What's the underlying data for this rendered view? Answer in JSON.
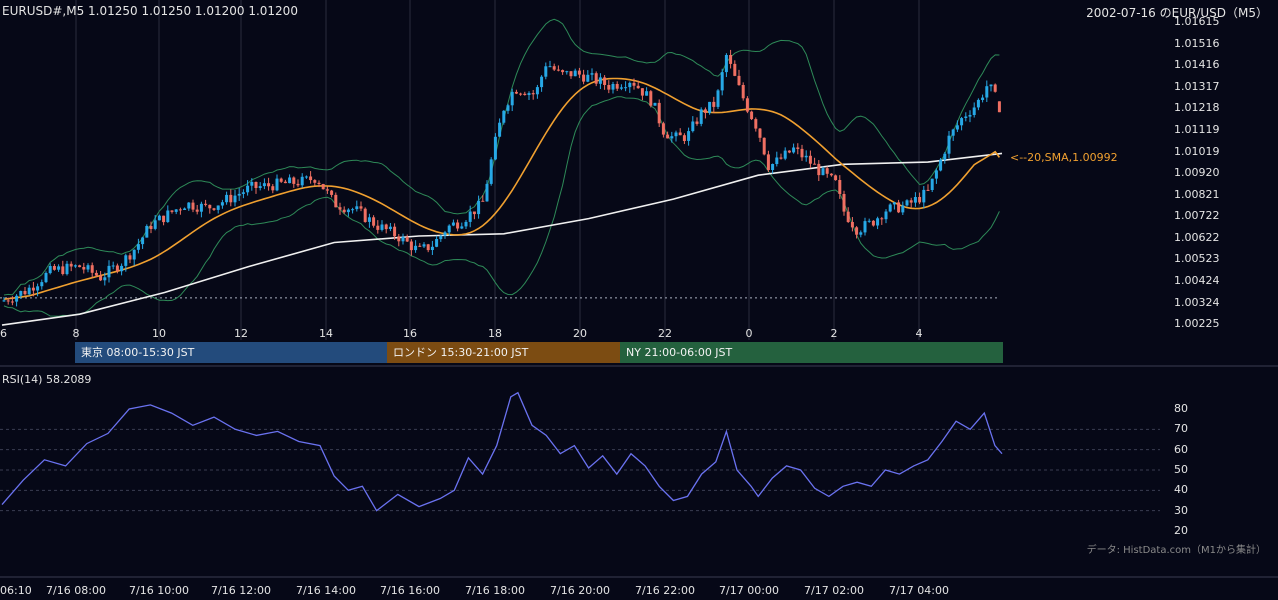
{
  "header": {
    "ohlc_label": "EURUSD#,M5 1.01250 1.01250 1.01200 1.01200",
    "title_right": "2002-07-16 のEUR/USD（M5）"
  },
  "price_axis": {
    "ticks": [
      "1.01615",
      "1.01516",
      "1.01416",
      "1.01317",
      "1.01218",
      "1.01119",
      "1.01019",
      "1.00920",
      "1.00821",
      "1.00722",
      "1.00622",
      "1.00523",
      "1.00424",
      "1.00324",
      "1.00225"
    ]
  },
  "hour_axis": {
    "ticks": [
      "6",
      "8",
      "10",
      "12",
      "14",
      "16",
      "18",
      "20",
      "22",
      "0",
      "2",
      "4"
    ]
  },
  "sessions": [
    {
      "label": "東京 08:00-15:30 JST",
      "color": "#234b7c"
    },
    {
      "label": "ロンドン 15:30-21:00 JST",
      "color": "#7c4c12"
    },
    {
      "label": "NY 21:00-06:00 JST",
      "color": "#24613e"
    }
  ],
  "ma_annotation": "<--20,SMA,1.00992",
  "rsi": {
    "label": "RSI(14) 58.2089",
    "ticks": [
      "80",
      "70",
      "60",
      "50",
      "40",
      "30",
      "20"
    ],
    "source_note": "データ: HistData.com（M1から集計）"
  },
  "time_axis": {
    "ticks": [
      "06:10",
      "7/16 08:00",
      "7/16 10:00",
      "7/16 12:00",
      "7/16 14:00",
      "7/16 16:00",
      "7/16 18:00",
      "7/16 20:00",
      "7/16 22:00",
      "7/17 00:00",
      "7/17 02:00",
      "7/17 04:00"
    ]
  },
  "colors": {
    "background": "#060817",
    "up_candle": "#27a8e6",
    "down_candle": "#ef6f62",
    "bollinger": "#2e8a58",
    "ma_orange": "#f0a030",
    "ma_white": "#f0f0f0",
    "rsi_line": "#6a72f0",
    "grid": "#2a2d3e"
  },
  "chart_data": [
    {
      "type": "candlestick",
      "title": "EURUSD#,M5",
      "timeframe": "M5",
      "last_bar": {
        "open": 1.0125,
        "high": 1.0125,
        "low": 1.012,
        "close": 1.012
      },
      "ylim": [
        1.00225,
        1.01615
      ],
      "x_start": "7/16 06:10",
      "x_end": "7/17 05:45",
      "close_path": [
        {
          "t": "06:10",
          "close": 1.0033
        },
        {
          "t": "06:45",
          "close": 1.0038
        },
        {
          "t": "07:20",
          "close": 1.0047
        },
        {
          "t": "08:00",
          "close": 1.0049
        },
        {
          "t": "08:30",
          "close": 1.0044
        },
        {
          "t": "09:00",
          "close": 1.0051
        },
        {
          "t": "09:20",
          "close": 1.0058
        },
        {
          "t": "09:40",
          "close": 1.0068
        },
        {
          "t": "10:00",
          "close": 1.0072
        },
        {
          "t": "10:30",
          "close": 1.0078
        },
        {
          "t": "11:00",
          "close": 1.0076
        },
        {
          "t": "11:30",
          "close": 1.008
        },
        {
          "t": "12:00",
          "close": 1.0085
        },
        {
          "t": "12:45",
          "close": 1.0087
        },
        {
          "t": "13:15",
          "close": 1.0088
        },
        {
          "t": "13:35",
          "close": 1.009
        },
        {
          "t": "14:00",
          "close": 1.0078
        },
        {
          "t": "14:30",
          "close": 1.0075
        },
        {
          "t": "15:00",
          "close": 1.0068
        },
        {
          "t": "15:30",
          "close": 1.0063
        },
        {
          "t": "16:00",
          "close": 1.0056
        },
        {
          "t": "16:20",
          "close": 1.0059
        },
        {
          "t": "16:40",
          "close": 1.0067
        },
        {
          "t": "17:00",
          "close": 1.007
        },
        {
          "t": "17:30",
          "close": 1.0078
        },
        {
          "t": "17:45",
          "close": 1.0102
        },
        {
          "t": "18:00",
          "close": 1.0122
        },
        {
          "t": "18:15",
          "close": 1.0131
        },
        {
          "t": "18:30",
          "close": 1.013
        },
        {
          "t": "18:45",
          "close": 1.0128
        },
        {
          "t": "19:00",
          "close": 1.0143
        },
        {
          "t": "19:20",
          "close": 1.0137
        },
        {
          "t": "19:40",
          "close": 1.0138
        },
        {
          "t": "20:00",
          "close": 1.0136
        },
        {
          "t": "20:30",
          "close": 1.0132
        },
        {
          "t": "21:00",
          "close": 1.0135
        },
        {
          "t": "21:30",
          "close": 1.0125
        },
        {
          "t": "21:45",
          "close": 1.0112
        },
        {
          "t": "22:00",
          "close": 1.0108
        },
        {
          "t": "22:20",
          "close": 1.0109
        },
        {
          "t": "22:40",
          "close": 1.012
        },
        {
          "t": "23:00",
          "close": 1.0124
        },
        {
          "t": "23:15",
          "close": 1.0146
        },
        {
          "t": "23:30",
          "close": 1.0133
        },
        {
          "t": "23:45",
          "close": 1.0122
        },
        {
          "t": "00:00",
          "close": 1.0112
        },
        {
          "t": "00:15",
          "close": 1.0095
        },
        {
          "t": "00:30",
          "close": 1.0098
        },
        {
          "t": "00:50",
          "close": 1.0103
        },
        {
          "t": "01:10",
          "close": 1.0098
        },
        {
          "t": "01:30",
          "close": 1.0092
        },
        {
          "t": "01:50",
          "close": 1.0087
        },
        {
          "t": "02:00",
          "close": 1.0075
        },
        {
          "t": "02:20",
          "close": 1.0066
        },
        {
          "t": "02:40",
          "close": 1.0069
        },
        {
          "t": "03:00",
          "close": 1.0075
        },
        {
          "t": "03:30",
          "close": 1.0077
        },
        {
          "t": "04:00",
          "close": 1.0083
        },
        {
          "t": "04:15",
          "close": 1.0095
        },
        {
          "t": "04:30",
          "close": 1.0108
        },
        {
          "t": "04:50",
          "close": 1.0118
        },
        {
          "t": "05:10",
          "close": 1.0124
        },
        {
          "t": "05:25",
          "close": 1.0133
        },
        {
          "t": "05:35",
          "close": 1.0127
        },
        {
          "t": "05:45",
          "close": 1.012
        }
      ],
      "indicators": {
        "sma_20_last": 1.00992,
        "ma_long_path": [
          {
            "t": "06:10",
            "close": 1.0022
          },
          {
            "t": "08:00",
            "close": 1.0027
          },
          {
            "t": "10:00",
            "close": 1.0037
          },
          {
            "t": "12:00",
            "close": 1.0049
          },
          {
            "t": "14:00",
            "close": 1.006
          },
          {
            "t": "16:00",
            "close": 1.0063
          },
          {
            "t": "18:00",
            "close": 1.0064
          },
          {
            "t": "20:00",
            "close": 1.0071
          },
          {
            "t": "22:00",
            "close": 1.008
          },
          {
            "t": "00:00",
            "close": 1.0091
          },
          {
            "t": "02:00",
            "close": 1.0096
          },
          {
            "t": "04:00",
            "close": 1.0097
          },
          {
            "t": "05:45",
            "close": 1.0101
          }
        ]
      },
      "reference_line": 1.00345,
      "grid": true,
      "annotations": [
        "<--20,SMA,1.00992"
      ]
    },
    {
      "type": "line",
      "title": "RSI(14) 58.2089",
      "series": [
        {
          "name": "RSI(14)",
          "x": [
            "06:10",
            "06:40",
            "07:10",
            "07:40",
            "08:10",
            "08:40",
            "09:10",
            "09:40",
            "10:10",
            "10:40",
            "11:10",
            "11:40",
            "12:10",
            "12:40",
            "13:10",
            "13:40",
            "14:00",
            "14:20",
            "14:40",
            "15:00",
            "15:30",
            "16:00",
            "16:30",
            "16:50",
            "17:10",
            "17:30",
            "17:50",
            "18:10",
            "18:20",
            "18:40",
            "19:00",
            "19:20",
            "19:40",
            "20:00",
            "20:20",
            "20:40",
            "21:00",
            "21:20",
            "21:40",
            "22:00",
            "22:20",
            "22:40",
            "23:00",
            "23:15",
            "23:30",
            "23:50",
            "00:00",
            "00:20",
            "00:40",
            "01:00",
            "01:20",
            "01:40",
            "02:00",
            "02:20",
            "02:40",
            "03:00",
            "03:20",
            "03:40",
            "04:00",
            "04:20",
            "04:40",
            "05:00",
            "05:20",
            "05:35",
            "05:45"
          ],
          "values": [
            33,
            45,
            55,
            52,
            63,
            68,
            80,
            82,
            78,
            72,
            76,
            70,
            67,
            69,
            64,
            62,
            47,
            40,
            42,
            30,
            38,
            32,
            36,
            40,
            56,
            48,
            62,
            86,
            88,
            72,
            67,
            58,
            62,
            51,
            57,
            48,
            58,
            52,
            42,
            35,
            37,
            48,
            54,
            69,
            50,
            42,
            37,
            46,
            52,
            50,
            41,
            37,
            42,
            44,
            42,
            50,
            48,
            52,
            55,
            64,
            74,
            70,
            78,
            62,
            58
          ]
        }
      ],
      "ylim": [
        20,
        80
      ],
      "grid": true
    }
  ]
}
